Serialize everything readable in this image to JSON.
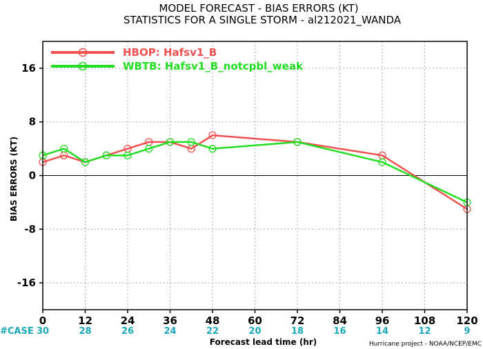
{
  "chart_data": {
    "type": "line",
    "title": "MODEL FORECAST - BIAS ERRORS (KT)",
    "subtitle": "STATISTICS FOR A SINGLE STORM - al212021_WANDA",
    "xlabel": "Forecast lead time (hr)",
    "ylabel": "BIAS ERRORS (KT)",
    "xlim": [
      0,
      120
    ],
    "ylim": [
      -20,
      20
    ],
    "x_ticks": [
      0,
      12,
      24,
      36,
      48,
      60,
      72,
      84,
      96,
      108,
      120
    ],
    "y_ticks": [
      -16,
      -8,
      0,
      8,
      16
    ],
    "grid": true,
    "legend_position": "top-left",
    "series": [
      {
        "name": "HBOP: Hafsv1_B",
        "color": "#f05050",
        "x": [
          0,
          6,
          12,
          18,
          24,
          30,
          36,
          42,
          48,
          72,
          96,
          120
        ],
        "y": [
          2,
          3,
          2,
          3,
          4,
          5,
          5,
          4,
          6,
          5,
          3,
          -5
        ]
      },
      {
        "name": "WBTB: Hafsv1_B_notcpbl_weak",
        "color": "#22dd22",
        "x": [
          0,
          6,
          12,
          18,
          24,
          30,
          36,
          42,
          48,
          72,
          96,
          120
        ],
        "y": [
          3,
          4,
          2,
          3,
          3,
          4,
          5,
          5,
          4,
          5,
          2,
          -4
        ]
      }
    ],
    "case_label": "#CASE",
    "case_counts": [
      {
        "x": 0,
        "n": "30"
      },
      {
        "x": 12,
        "n": "28"
      },
      {
        "x": 24,
        "n": "26"
      },
      {
        "x": 36,
        "n": "24"
      },
      {
        "x": 48,
        "n": "22"
      },
      {
        "x": 60,
        "n": "20"
      },
      {
        "x": 72,
        "n": "18"
      },
      {
        "x": 84,
        "n": "16"
      },
      {
        "x": 96,
        "n": "14"
      },
      {
        "x": 108,
        "n": "12"
      },
      {
        "x": 120,
        "n": "9"
      }
    ],
    "credit": "Hurricane project - NOAA/NCEP/EMC"
  }
}
